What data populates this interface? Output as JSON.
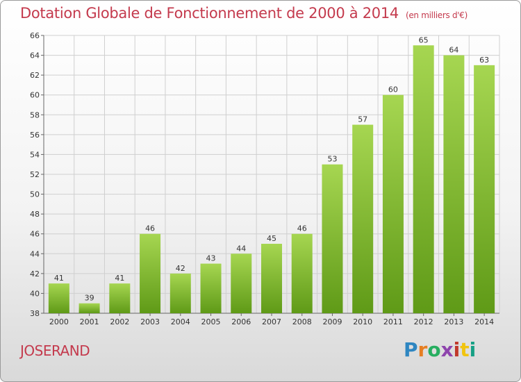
{
  "header": {
    "title": "Dotation Globale de Fonctionnement de 2000 à 2014",
    "unit": "(en milliers d'€)"
  },
  "footer": {
    "commune": "JOSERAND",
    "logo": "Proxiti"
  },
  "colors": {
    "title": "#c43a4d",
    "bar_top": "#a6d651",
    "bar_bottom": "#5f9a17",
    "grid": "#cfcfcf"
  },
  "chart_data": {
    "type": "bar",
    "categories": [
      "2000",
      "2001",
      "2002",
      "2003",
      "2004",
      "2005",
      "2006",
      "2007",
      "2008",
      "2009",
      "2010",
      "2011",
      "2012",
      "2013",
      "2014"
    ],
    "values": [
      41,
      39,
      41,
      46,
      42,
      43,
      44,
      45,
      46,
      53,
      57,
      60,
      65,
      64,
      63
    ],
    "title": "Dotation Globale de Fonctionnement de 2000 à 2014",
    "subtitle": "(en milliers d'€)",
    "ylim": [
      38,
      66
    ],
    "yticks": [
      38,
      40,
      42,
      44,
      46,
      48,
      50,
      52,
      54,
      56,
      58,
      60,
      62,
      64,
      66
    ],
    "grid": true,
    "data_labels": true
  }
}
